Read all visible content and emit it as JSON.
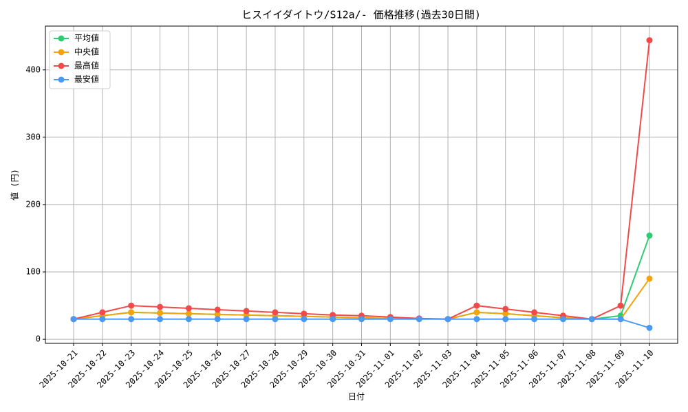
{
  "chart_data": {
    "type": "line",
    "title": "ヒスイイダイトウ/S12a/- 価格推移(過去30日間)",
    "x_label": "日付",
    "y_label": "値 (円)",
    "categories": [
      "2025-10-21",
      "2025-10-22",
      "2025-10-23",
      "2025-10-24",
      "2025-10-25",
      "2025-10-26",
      "2025-10-27",
      "2025-10-28",
      "2025-10-29",
      "2025-10-30",
      "2025-10-31",
      "2025-11-01",
      "2025-11-02",
      "2025-11-03",
      "2025-11-04",
      "2025-11-05",
      "2025-11-06",
      "2025-11-07",
      "2025-11-08",
      "2025-11-09",
      "2025-11-10"
    ],
    "series": [
      {
        "name": "平均値",
        "color": "#2ecc71",
        "values": [
          30,
          35,
          40,
          39,
          38,
          37,
          36,
          35,
          34,
          33,
          32,
          31,
          30.5,
          30,
          40,
          38,
          35,
          32,
          30,
          35,
          154
        ]
      },
      {
        "name": "中央値",
        "color": "#f5a30a",
        "values": [
          30,
          35,
          40,
          39,
          38,
          37,
          36,
          35,
          34,
          33,
          32,
          31,
          30.5,
          30,
          40,
          38,
          35,
          32,
          30,
          30,
          90
        ]
      },
      {
        "name": "最高値",
        "color": "#f04a4a",
        "values": [
          30,
          40,
          50,
          48,
          46,
          44,
          42,
          40,
          38,
          36,
          35,
          33,
          31,
          30,
          50,
          45,
          40,
          35,
          30,
          50,
          444
        ]
      },
      {
        "name": "最安値",
        "color": "#4a9af5",
        "values": [
          30,
          30,
          30,
          30,
          30,
          30,
          30,
          30,
          30,
          30,
          30,
          30,
          30,
          30,
          30,
          30,
          30,
          30,
          30,
          30,
          17
        ]
      }
    ],
    "ylim": [
      -6,
      465
    ],
    "yticks": [
      0,
      100,
      200,
      300,
      400
    ],
    "grid": true,
    "legend": "upper-left"
  }
}
